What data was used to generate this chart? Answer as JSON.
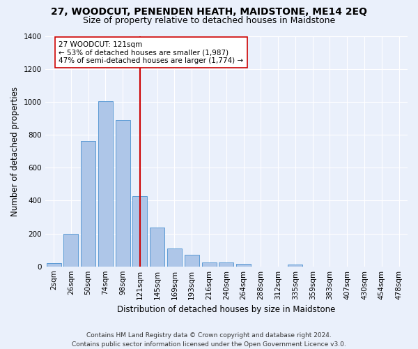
{
  "title": "27, WOODCUT, PENENDEN HEATH, MAIDSTONE, ME14 2EQ",
  "subtitle": "Size of property relative to detached houses in Maidstone",
  "xlabel": "Distribution of detached houses by size in Maidstone",
  "ylabel": "Number of detached properties",
  "categories": [
    "2sqm",
    "26sqm",
    "50sqm",
    "74sqm",
    "98sqm",
    "121sqm",
    "145sqm",
    "169sqm",
    "193sqm",
    "216sqm",
    "240sqm",
    "264sqm",
    "288sqm",
    "312sqm",
    "335sqm",
    "359sqm",
    "383sqm",
    "407sqm",
    "430sqm",
    "454sqm",
    "478sqm"
  ],
  "values": [
    20,
    200,
    760,
    1005,
    890,
    425,
    235,
    110,
    70,
    25,
    22,
    15,
    0,
    0,
    12,
    0,
    0,
    0,
    0,
    0,
    0
  ],
  "bar_color": "#aec6e8",
  "bar_edge_color": "#5b9bd5",
  "vline_x_index": 5,
  "vline_color": "#cc0000",
  "annotation_text": "27 WOODCUT: 121sqm\n← 53% of detached houses are smaller (1,987)\n47% of semi-detached houses are larger (1,774) →",
  "annotation_box_color": "#ffffff",
  "annotation_box_edge_color": "#cc0000",
  "ylim": [
    0,
    1400
  ],
  "yticks": [
    0,
    200,
    400,
    600,
    800,
    1000,
    1200,
    1400
  ],
  "footer": "Contains HM Land Registry data © Crown copyright and database right 2024.\nContains public sector information licensed under the Open Government Licence v3.0.",
  "background_color": "#eaf0fb",
  "grid_color": "#ffffff",
  "title_fontsize": 10,
  "subtitle_fontsize": 9,
  "axis_label_fontsize": 8.5,
  "tick_fontsize": 7.5,
  "annotation_fontsize": 7.5,
  "footer_fontsize": 6.5
}
